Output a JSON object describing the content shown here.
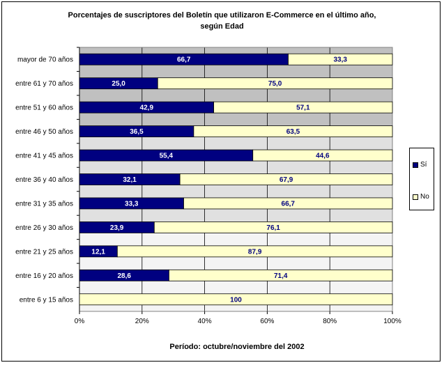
{
  "chart_data": {
    "type": "bar",
    "orientation": "horizontal",
    "stacked": "percent",
    "title_lines": [
      "Porcentajes de suscriptores del Boletín que utilizaron E-Commerce en el último año,",
      "según Edad"
    ],
    "footer": "Período: octubre/noviembre del 2002",
    "categories": [
      "mayor de 70 años",
      "entre 61 y 70 años",
      "entre 51 y 60 años",
      "entre 46 y 50 años",
      "entre 41 y 45 años",
      "entre 36 y 40 años",
      "entre 31 y 35 años",
      "entre 26 y 30 años",
      "entre 21 y 25 años",
      "entre 16 y 20 años",
      "entre 6 y 15 años"
    ],
    "series": [
      {
        "name": "Sí",
        "color": "#000080",
        "label_color": "#ffffff",
        "values": [
          66.7,
          25.0,
          42.9,
          36.5,
          55.4,
          32.1,
          33.3,
          23.9,
          12.1,
          28.6,
          0
        ],
        "labels": [
          "66,7",
          "25,0",
          "42,9",
          "36,5",
          "55,4",
          "32,1",
          "33,3",
          "23,9",
          "12,1",
          "28,6",
          ""
        ]
      },
      {
        "name": "No",
        "color": "#ffffcc",
        "label_color": "#000080",
        "values": [
          33.3,
          75.0,
          57.1,
          63.5,
          44.6,
          67.9,
          66.7,
          76.1,
          87.9,
          71.4,
          100
        ],
        "labels": [
          "33,3",
          "75,0",
          "57,1",
          "63,5",
          "44,6",
          "67,9",
          "66,7",
          "76,1",
          "87,9",
          "71,4",
          "100"
        ]
      }
    ],
    "x_ticks": [
      "0%",
      "20%",
      "40%",
      "60%",
      "80%",
      "100%"
    ],
    "xlim": [
      0,
      100
    ],
    "grid": true,
    "plot_background": [
      "#c0c0c0",
      "#e0e0e0",
      "#f4f4f4"
    ],
    "legend_position": "right"
  }
}
